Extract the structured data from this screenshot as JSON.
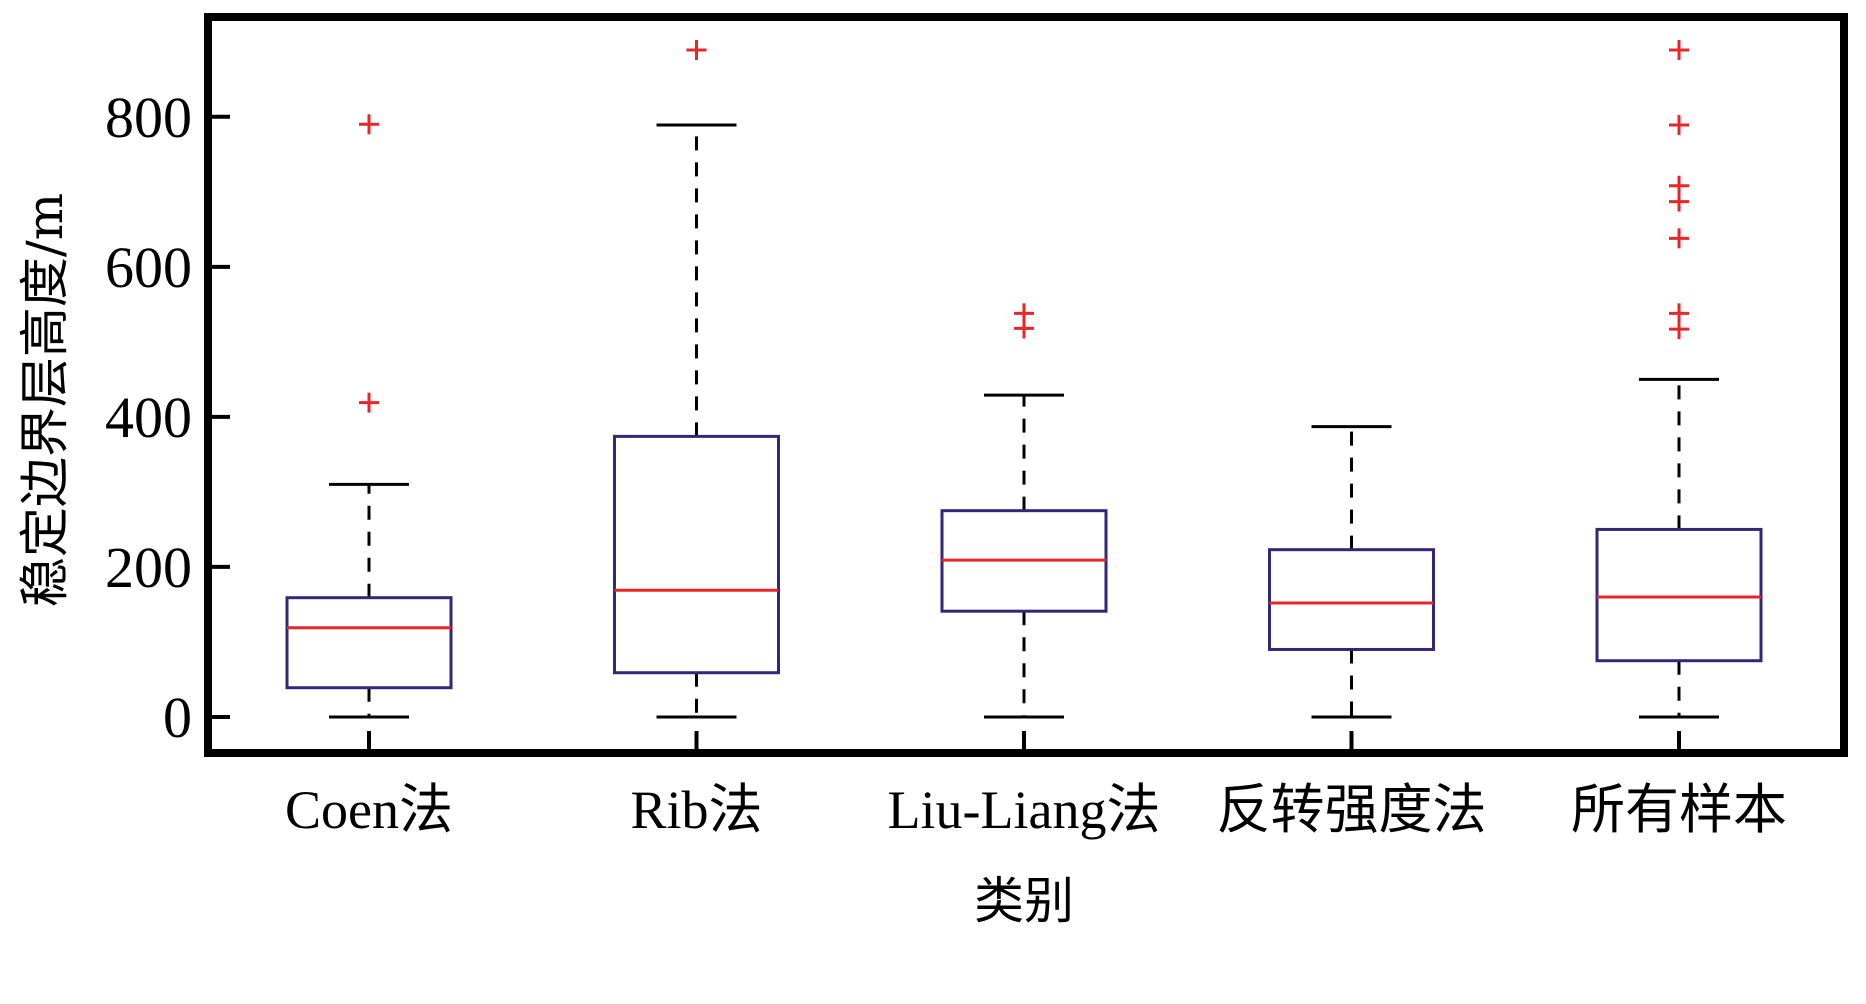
{
  "chart_data": {
    "type": "box",
    "title": "",
    "xlabel": "类别",
    "ylabel": "稳定边界层高度/m",
    "ylim": [
      -48,
      933
    ],
    "yticks": [
      0,
      200,
      400,
      600,
      800
    ],
    "grid": false,
    "categories": [
      "Coen法",
      "Rib法",
      "Liu-Liang法",
      "反转强度法",
      "所有样本"
    ],
    "boxes": [
      {
        "whisker_low": 0,
        "q1": 39,
        "median": 119,
        "q3": 159,
        "whisker_high": 310,
        "outliers": [
          419,
          790
        ]
      },
      {
        "whisker_low": 0,
        "q1": 59,
        "median": 169,
        "q3": 374,
        "whisker_high": 789,
        "outliers": [
          889
        ]
      },
      {
        "whisker_low": 0,
        "q1": 141,
        "median": 209,
        "q3": 275,
        "whisker_high": 429,
        "outliers": [
          518,
          538
        ]
      },
      {
        "whisker_low": 0,
        "q1": 90,
        "median": 152,
        "q3": 223,
        "whisker_high": 387,
        "outliers": []
      },
      {
        "whisker_low": 0,
        "q1": 75,
        "median": 160,
        "q3": 250,
        "whisker_high": 450,
        "outliers": [
          517,
          538,
          638,
          687,
          708,
          789,
          889
        ]
      }
    ],
    "colors": {
      "box": "#35267a",
      "median": "#e8262a",
      "outlier": "#e8262a",
      "whisker": "#000000"
    }
  }
}
